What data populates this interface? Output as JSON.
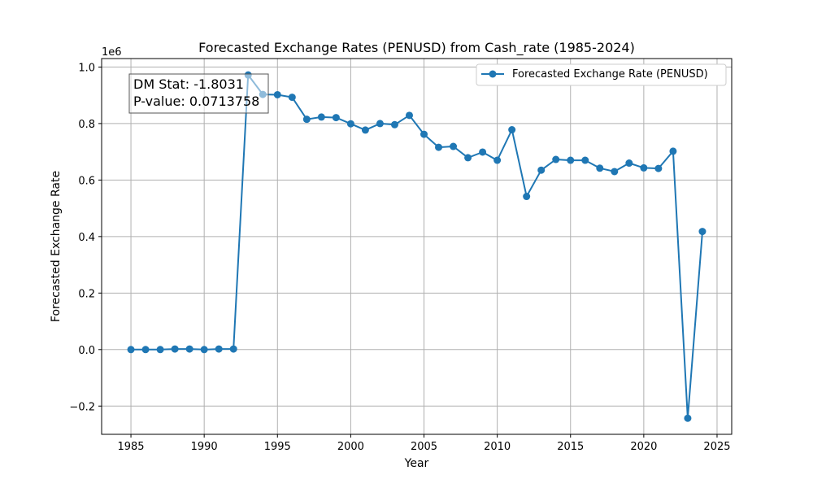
{
  "chart_data": {
    "type": "line",
    "title": "Forecasted Exchange Rates (PENUSD) from Cash_rate (1985-2024)",
    "xlabel": "Year",
    "ylabel": "Forecasted Exchange Rate",
    "offset_text": "1e6",
    "xlim": [
      1983.0,
      2026.0
    ],
    "ylim": [
      -0.3,
      1.03
    ],
    "xticks": [
      1985,
      1990,
      1995,
      2000,
      2005,
      2010,
      2015,
      2020,
      2025
    ],
    "yticks": [
      -0.2,
      0.0,
      0.2,
      0.4,
      0.6,
      0.8,
      1.0
    ],
    "ytick_labels": [
      "−0.2",
      "0.0",
      "0.2",
      "0.4",
      "0.6",
      "0.8",
      "1.0"
    ],
    "grid": true,
    "legend_position": "top-right",
    "series": [
      {
        "name": "Forecasted Exchange Rate (PENUSD)",
        "color": "#1f77b4",
        "x": [
          1985,
          1986,
          1987,
          1988,
          1989,
          1990,
          1991,
          1992,
          1993,
          1994,
          1995,
          1996,
          1997,
          1998,
          1999,
          2000,
          2001,
          2002,
          2003,
          2004,
          2005,
          2006,
          2007,
          2008,
          2009,
          2010,
          2011,
          2012,
          2013,
          2014,
          2015,
          2016,
          2017,
          2018,
          2019,
          2020,
          2021,
          2022,
          2023,
          2024
        ],
        "values": [
          0.0,
          0.0,
          0.0,
          0.002,
          0.002,
          0.0,
          0.002,
          0.002,
          0.972,
          0.903,
          0.902,
          0.893,
          0.815,
          0.823,
          0.821,
          0.799,
          0.777,
          0.8,
          0.796,
          0.829,
          0.762,
          0.716,
          0.719,
          0.679,
          0.699,
          0.67,
          0.778,
          0.542,
          0.635,
          0.673,
          0.67,
          0.67,
          0.642,
          0.63,
          0.66,
          0.643,
          0.641,
          0.702,
          -0.243,
          0.418
        ]
      }
    ],
    "annotation": {
      "line1": "DM Stat: -1.8031",
      "line2": "P-value: 0.0713758"
    }
  }
}
